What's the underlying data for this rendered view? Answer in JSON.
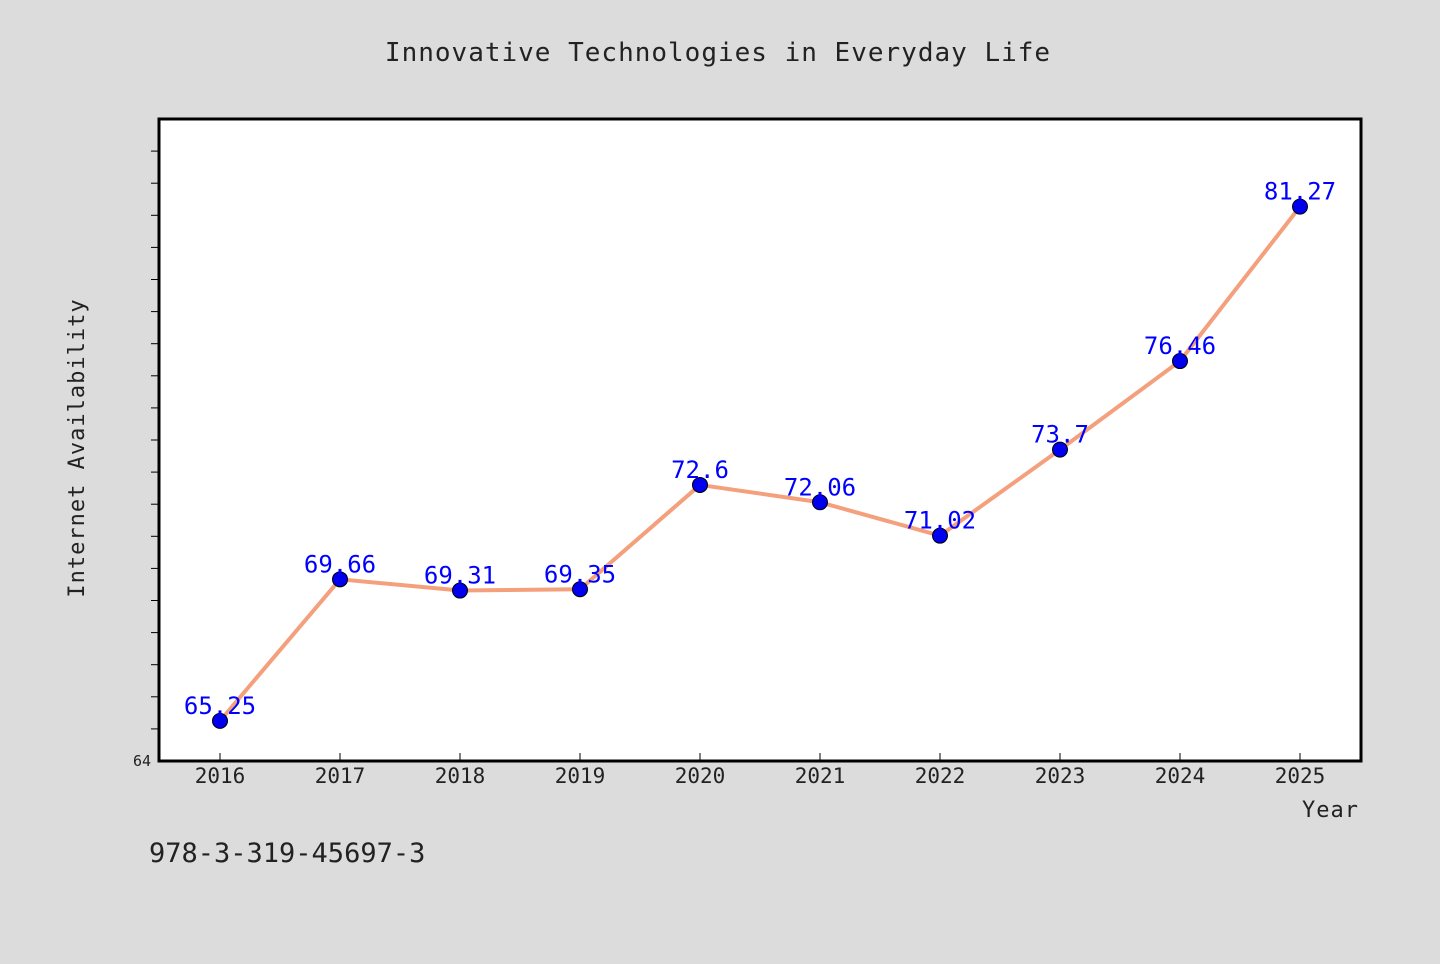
{
  "chart_data": {
    "type": "line",
    "title": "Innovative Technologies in Everyday Life",
    "xlabel": "Year",
    "ylabel": "Internet Availability",
    "categories": [
      "2016",
      "2017",
      "2018",
      "2019",
      "2020",
      "2021",
      "2022",
      "2023",
      "2024",
      "2025"
    ],
    "series": [
      {
        "values": [
          65.25,
          69.66,
          69.31,
          69.35,
          72.6,
          72.06,
          71.02,
          73.7,
          76.46,
          81.27
        ],
        "labels": [
          "65.25",
          "69.66",
          "69.31",
          "69.35",
          "72.6",
          "72.06",
          "71.02",
          "73.7",
          "76.46",
          "81.27"
        ],
        "line_color": "#f4a07c",
        "marker_color": "#0000ee"
      }
    ],
    "ylim": [
      64,
      84
    ],
    "y_min_label": "64",
    "grid": false,
    "background": "#dcdcdc",
    "plot_background": "#ffffff"
  },
  "footer": {
    "isbn": "978-3-319-45697-3"
  }
}
